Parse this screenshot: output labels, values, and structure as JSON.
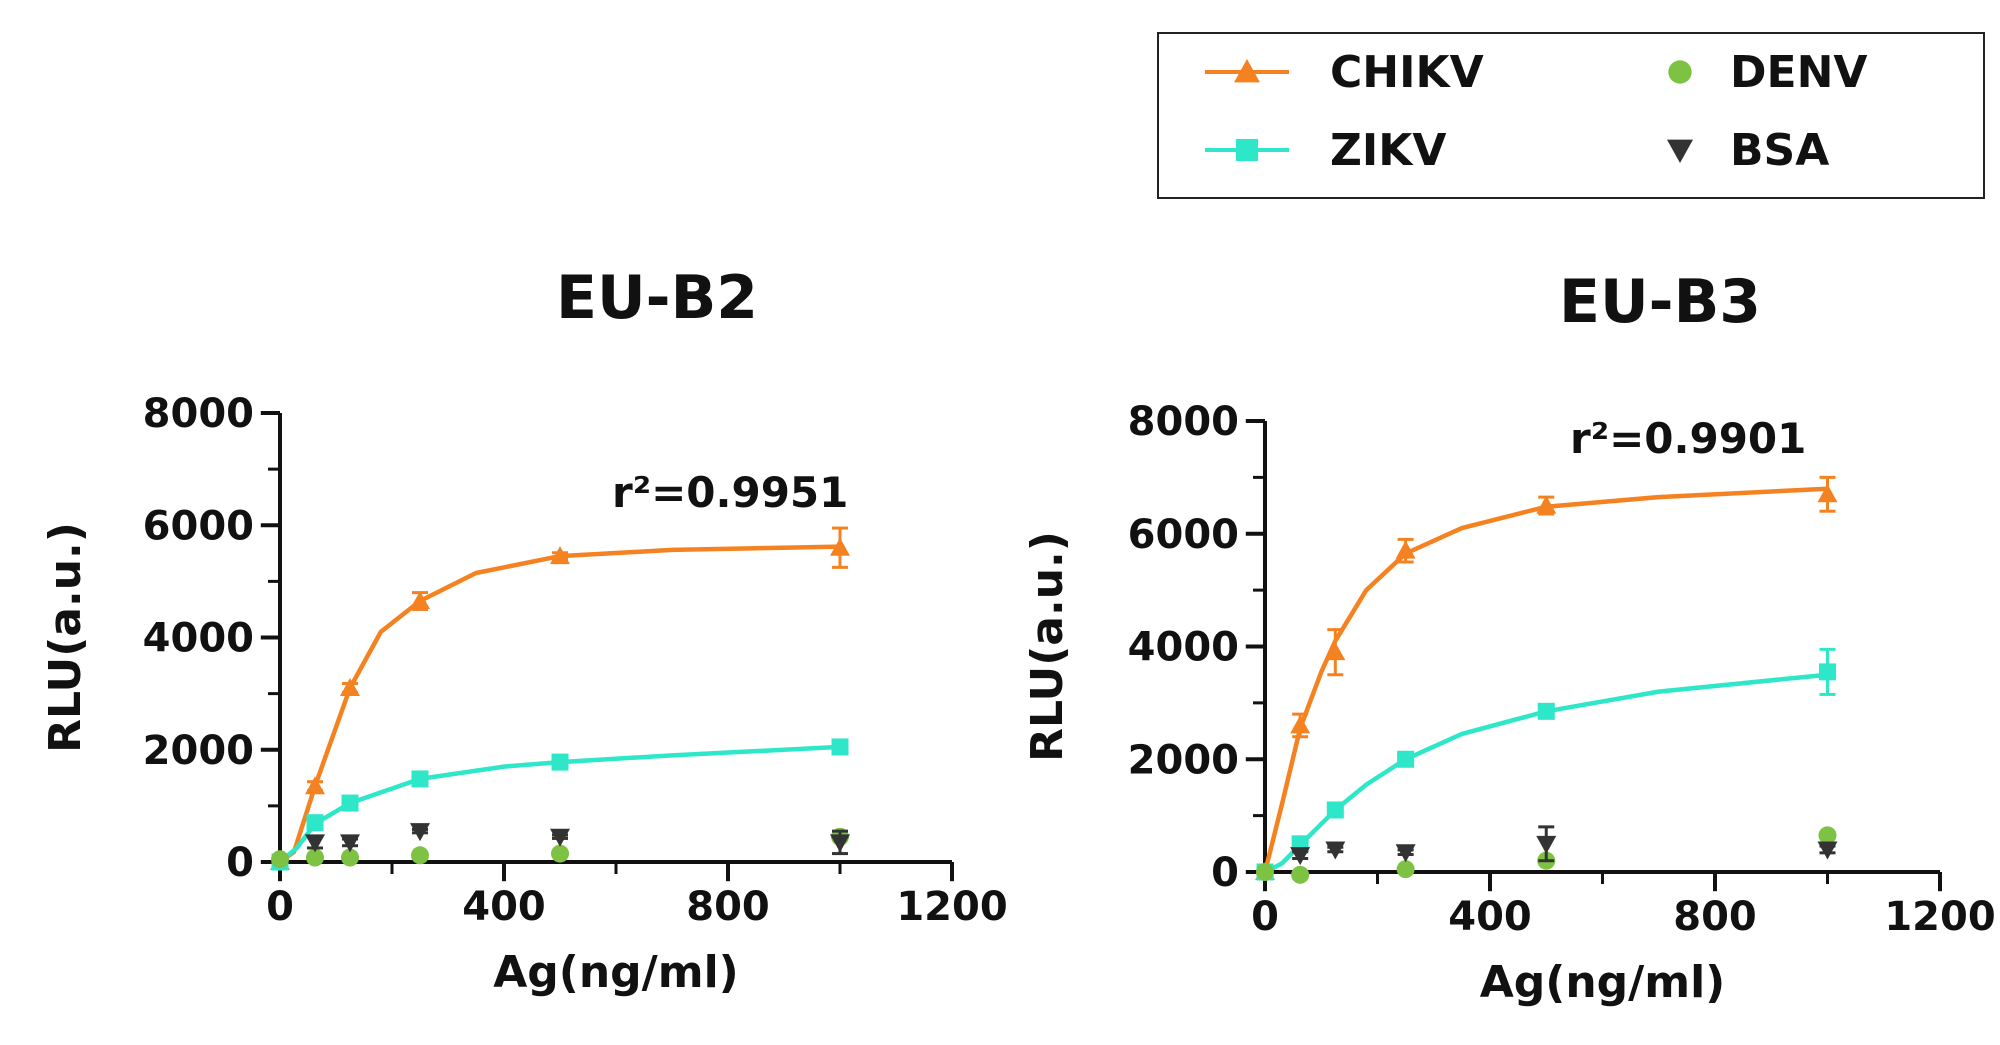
{
  "legend": {
    "placement": "top-right",
    "entries": [
      {
        "label": "CHIKV",
        "color": "#F58220",
        "marker": "triangle-up",
        "line": true
      },
      {
        "label": "ZIKV",
        "color": "#2EE6C8",
        "marker": "square",
        "line": true
      },
      {
        "label": "DENV",
        "color": "#7DC242",
        "marker": "circle",
        "line": false
      },
      {
        "label": "BSA",
        "color": "#333333",
        "marker": "triangle-down",
        "line": false
      }
    ]
  },
  "chart_data": [
    {
      "type": "scatter",
      "title": "EU-B2",
      "xlabel": "Ag(ng/ml)",
      "ylabel": "RLU(a.u.)",
      "xlim": [
        0,
        1200
      ],
      "ylim": [
        0,
        8000
      ],
      "xticks": [
        0,
        400,
        800,
        1200
      ],
      "yticks": [
        0,
        2000,
        4000,
        6000,
        8000
      ],
      "annotation": "r²=0.9951",
      "series": [
        {
          "name": "CHIKV",
          "x": [
            0,
            62.5,
            125,
            250,
            500,
            1000
          ],
          "y": [
            0,
            1350,
            3100,
            4650,
            5450,
            5600
          ],
          "err": [
            0,
            80,
            80,
            150,
            60,
            350
          ],
          "fit": [
            [
              0,
              0
            ],
            [
              25,
              180
            ],
            [
              62.5,
              1350
            ],
            [
              100,
              2400
            ],
            [
              125,
              3100
            ],
            [
              180,
              4100
            ],
            [
              250,
              4650
            ],
            [
              350,
              5150
            ],
            [
              500,
              5450
            ],
            [
              700,
              5560
            ],
            [
              1000,
              5620
            ]
          ]
        },
        {
          "name": "ZIKV",
          "x": [
            0,
            62.5,
            125,
            250,
            500,
            1000
          ],
          "y": [
            0,
            700,
            1050,
            1480,
            1780,
            2050
          ],
          "err": [
            0,
            40,
            40,
            60,
            60,
            50
          ],
          "fit": [
            [
              0,
              0
            ],
            [
              30,
              250
            ],
            [
              62.5,
              680
            ],
            [
              125,
              1050
            ],
            [
              250,
              1480
            ],
            [
              400,
              1700
            ],
            [
              500,
              1780
            ],
            [
              700,
              1900
            ],
            [
              1000,
              2050
            ]
          ]
        },
        {
          "name": "DENV",
          "x": [
            0,
            62.5,
            125,
            250,
            500,
            1000
          ],
          "y": [
            50,
            80,
            80,
            120,
            150,
            450
          ],
          "err": [
            0,
            0,
            0,
            0,
            0,
            0
          ]
        },
        {
          "name": "BSA",
          "x": [
            62.5,
            125,
            250,
            500,
            1000
          ],
          "y": [
            350,
            350,
            550,
            450,
            350
          ],
          "err": [
            100,
            60,
            30,
            30,
            200
          ]
        }
      ]
    },
    {
      "type": "scatter",
      "title": "EU-B3",
      "xlabel": "Ag(ng/ml)",
      "ylabel": "RLU(a.u.)",
      "xlim": [
        0,
        1200
      ],
      "ylim": [
        0,
        8000
      ],
      "xticks": [
        0,
        400,
        800,
        1200
      ],
      "yticks": [
        0,
        2000,
        4000,
        6000,
        8000
      ],
      "annotation": "r²=0.9901",
      "series": [
        {
          "name": "CHIKV",
          "x": [
            0,
            62.5,
            125,
            250,
            500,
            1000
          ],
          "y": [
            0,
            2600,
            3900,
            5700,
            6500,
            6700
          ],
          "err": [
            0,
            200,
            400,
            200,
            150,
            300
          ],
          "fit": [
            [
              0,
              0
            ],
            [
              30,
              1200
            ],
            [
              62.5,
              2550
            ],
            [
              100,
              3550
            ],
            [
              125,
              4100
            ],
            [
              180,
              5000
            ],
            [
              250,
              5650
            ],
            [
              350,
              6100
            ],
            [
              500,
              6480
            ],
            [
              700,
              6650
            ],
            [
              1000,
              6800
            ]
          ]
        },
        {
          "name": "ZIKV",
          "x": [
            0,
            62.5,
            125,
            250,
            500,
            1000
          ],
          "y": [
            0,
            500,
            1100,
            2000,
            2850,
            3550
          ],
          "err": [
            0,
            50,
            80,
            80,
            60,
            400
          ],
          "fit": [
            [
              0,
              0
            ],
            [
              30,
              150
            ],
            [
              62.5,
              480
            ],
            [
              125,
              1100
            ],
            [
              180,
              1550
            ],
            [
              250,
              2000
            ],
            [
              350,
              2450
            ],
            [
              500,
              2850
            ],
            [
              700,
              3200
            ],
            [
              1000,
              3500
            ]
          ]
        },
        {
          "name": "DENV",
          "x": [
            0,
            62.5,
            250,
            500,
            1000
          ],
          "y": [
            0,
            -50,
            50,
            200,
            650
          ],
          "err": [
            0,
            0,
            0,
            0,
            0
          ]
        },
        {
          "name": "BSA",
          "x": [
            62.5,
            125,
            250,
            500,
            1000
          ],
          "y": [
            300,
            400,
            350,
            500,
            400
          ],
          "err": [
            60,
            40,
            40,
            300,
            60
          ]
        }
      ]
    }
  ]
}
